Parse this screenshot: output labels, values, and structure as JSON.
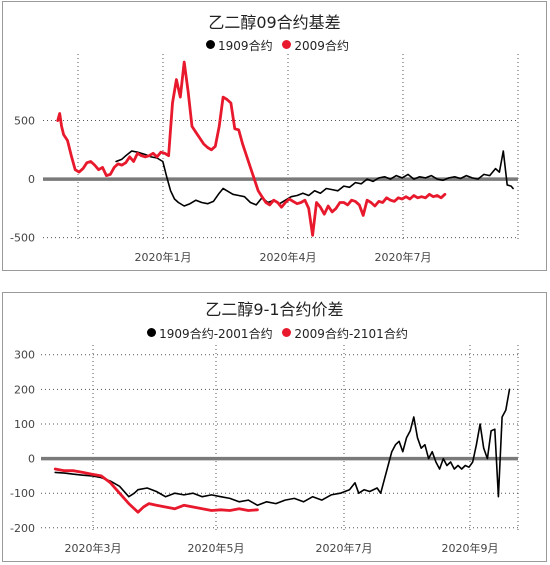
{
  "chart_data": [
    {
      "type": "line",
      "title": "乙二醇09合约基差",
      "ylim": [
        -520,
        1000
      ],
      "yticks": [
        500,
        0,
        -500
      ],
      "xticks": [
        "2020年1月",
        "2020年4月",
        "2020年7月"
      ],
      "grid": "dotted vertical and horizontal",
      "legend": "top-center",
      "series": [
        {
          "name": "1909合约",
          "color": "#000000",
          "points": [
            [
              35,
              150
            ],
            [
              38,
              170
            ],
            [
              40,
              200
            ],
            [
              43,
              240
            ],
            [
              46,
              230
            ],
            [
              50,
              210
            ],
            [
              53,
              190
            ],
            [
              56,
              180
            ],
            [
              59,
              150
            ],
            [
              61,
              20
            ],
            [
              63,
              -100
            ],
            [
              65,
              -170
            ],
            [
              67,
              -200
            ],
            [
              70,
              -230
            ],
            [
              73,
              -210
            ],
            [
              76,
              -180
            ],
            [
              79,
              -200
            ],
            [
              82,
              -210
            ],
            [
              85,
              -190
            ],
            [
              88,
              -120
            ],
            [
              90,
              -80
            ],
            [
              92,
              -100
            ],
            [
              95,
              -130
            ],
            [
              98,
              -140
            ],
            [
              101,
              -150
            ],
            [
              104,
              -200
            ],
            [
              107,
              -220
            ],
            [
              110,
              -160
            ],
            [
              113,
              -200
            ],
            [
              116,
              -180
            ],
            [
              119,
              -210
            ],
            [
              122,
              -180
            ],
            [
              125,
              -150
            ],
            [
              128,
              -140
            ],
            [
              131,
              -120
            ],
            [
              134,
              -140
            ],
            [
              137,
              -100
            ],
            [
              140,
              -120
            ],
            [
              143,
              -80
            ],
            [
              146,
              -90
            ],
            [
              149,
              -100
            ],
            [
              152,
              -60
            ],
            [
              155,
              -70
            ],
            [
              158,
              -30
            ],
            [
              161,
              -40
            ],
            [
              164,
              0
            ],
            [
              167,
              -20
            ],
            [
              170,
              10
            ],
            [
              173,
              20
            ],
            [
              176,
              0
            ],
            [
              179,
              30
            ],
            [
              182,
              10
            ],
            [
              185,
              40
            ],
            [
              188,
              0
            ],
            [
              191,
              20
            ],
            [
              194,
              10
            ],
            [
              197,
              30
            ],
            [
              200,
              0
            ],
            [
              203,
              -10
            ],
            [
              206,
              10
            ],
            [
              209,
              20
            ],
            [
              212,
              5
            ],
            [
              215,
              30
            ],
            [
              218,
              10
            ],
            [
              221,
              0
            ],
            [
              224,
              40
            ],
            [
              227,
              30
            ],
            [
              230,
              90
            ],
            [
              232,
              60
            ],
            [
              234,
              240
            ],
            [
              236,
              -50
            ],
            [
              238,
              -60
            ],
            [
              239,
              -80
            ]
          ]
        },
        {
          "name": "2009合约",
          "color": "#e8192c",
          "points": [
            [
              5,
              500
            ],
            [
              6,
              560
            ],
            [
              7,
              450
            ],
            [
              8,
              380
            ],
            [
              10,
              330
            ],
            [
              12,
              200
            ],
            [
              14,
              80
            ],
            [
              16,
              60
            ],
            [
              18,
              90
            ],
            [
              20,
              140
            ],
            [
              22,
              150
            ],
            [
              24,
              120
            ],
            [
              26,
              80
            ],
            [
              28,
              100
            ],
            [
              30,
              30
            ],
            [
              32,
              40
            ],
            [
              34,
              100
            ],
            [
              36,
              130
            ],
            [
              38,
              120
            ],
            [
              40,
              140
            ],
            [
              42,
              190
            ],
            [
              44,
              150
            ],
            [
              46,
              220
            ],
            [
              48,
              200
            ],
            [
              50,
              190
            ],
            [
              52,
              200
            ],
            [
              54,
              220
            ],
            [
              56,
              190
            ],
            [
              58,
              230
            ],
            [
              60,
              220
            ],
            [
              62,
              200
            ],
            [
              64,
              650
            ],
            [
              66,
              850
            ],
            [
              68,
              700
            ],
            [
              70,
              1000
            ],
            [
              72,
              750
            ],
            [
              74,
              450
            ],
            [
              76,
              400
            ],
            [
              78,
              350
            ],
            [
              80,
              300
            ],
            [
              82,
              270
            ],
            [
              84,
              250
            ],
            [
              86,
              280
            ],
            [
              88,
              450
            ],
            [
              90,
              700
            ],
            [
              92,
              680
            ],
            [
              94,
              650
            ],
            [
              96,
              430
            ],
            [
              98,
              420
            ],
            [
              100,
              300
            ],
            [
              102,
              200
            ],
            [
              104,
              100
            ],
            [
              106,
              0
            ],
            [
              108,
              -100
            ],
            [
              110,
              -150
            ],
            [
              112,
              -200
            ],
            [
              114,
              -220
            ],
            [
              116,
              -180
            ],
            [
              118,
              -200
            ],
            [
              120,
              -240
            ],
            [
              122,
              -200
            ],
            [
              124,
              -170
            ],
            [
              126,
              -190
            ],
            [
              128,
              -210
            ],
            [
              130,
              -200
            ],
            [
              132,
              -180
            ],
            [
              134,
              -250
            ],
            [
              136,
              -480
            ],
            [
              138,
              -200
            ],
            [
              140,
              -240
            ],
            [
              142,
              -300
            ],
            [
              144,
              -230
            ],
            [
              146,
              -280
            ],
            [
              148,
              -250
            ],
            [
              150,
              -200
            ],
            [
              152,
              -200
            ],
            [
              154,
              -220
            ],
            [
              156,
              -180
            ],
            [
              158,
              -190
            ],
            [
              160,
              -220
            ],
            [
              162,
              -310
            ],
            [
              164,
              -180
            ],
            [
              166,
              -200
            ],
            [
              168,
              -230
            ],
            [
              170,
              -190
            ],
            [
              172,
              -200
            ],
            [
              174,
              -160
            ],
            [
              176,
              -180
            ],
            [
              178,
              -190
            ],
            [
              180,
              -160
            ],
            [
              182,
              -170
            ],
            [
              184,
              -150
            ],
            [
              186,
              -170
            ],
            [
              188,
              -140
            ],
            [
              190,
              -160
            ],
            [
              192,
              -150
            ],
            [
              194,
              -160
            ],
            [
              196,
              -130
            ],
            [
              198,
              -150
            ],
            [
              200,
              -140
            ],
            [
              202,
              -160
            ],
            [
              204,
              -130
            ]
          ]
        }
      ]
    },
    {
      "type": "line",
      "title": "乙二醇9-1合约价差",
      "ylim": [
        -215,
        305
      ],
      "yticks": [
        300,
        200,
        100,
        0,
        -100,
        -200
      ],
      "xticks": [
        "2020年3月",
        "2020年5月",
        "2020年7月",
        "2020年9月"
      ],
      "grid": "dotted vertical and horizontal",
      "legend": "top-center",
      "series": [
        {
          "name": "1909合约-2001合约",
          "color": "#000000",
          "points": [
            [
              5,
              -40
            ],
            [
              10,
              -42
            ],
            [
              15,
              -45
            ],
            [
              20,
              -48
            ],
            [
              25,
              -50
            ],
            [
              30,
              -55
            ],
            [
              35,
              -65
            ],
            [
              40,
              -80
            ],
            [
              45,
              -110
            ],
            [
              48,
              -100
            ],
            [
              50,
              -90
            ],
            [
              55,
              -85
            ],
            [
              60,
              -95
            ],
            [
              65,
              -110
            ],
            [
              70,
              -100
            ],
            [
              75,
              -105
            ],
            [
              80,
              -100
            ],
            [
              85,
              -110
            ],
            [
              90,
              -105
            ],
            [
              95,
              -110
            ],
            [
              100,
              -115
            ],
            [
              105,
              -125
            ],
            [
              110,
              -120
            ],
            [
              115,
              -135
            ],
            [
              120,
              -125
            ],
            [
              125,
              -130
            ],
            [
              130,
              -120
            ],
            [
              135,
              -115
            ],
            [
              140,
              -125
            ],
            [
              145,
              -110
            ],
            [
              150,
              -120
            ],
            [
              155,
              -105
            ],
            [
              160,
              -100
            ],
            [
              165,
              -90
            ],
            [
              168,
              -70
            ],
            [
              170,
              -100
            ],
            [
              173,
              -90
            ],
            [
              176,
              -95
            ],
            [
              180,
              -85
            ],
            [
              182,
              -100
            ],
            [
              184,
              -60
            ],
            [
              186,
              -20
            ],
            [
              188,
              20
            ],
            [
              190,
              40
            ],
            [
              192,
              50
            ],
            [
              194,
              20
            ],
            [
              196,
              60
            ],
            [
              198,
              80
            ],
            [
              200,
              120
            ],
            [
              202,
              60
            ],
            [
              204,
              30
            ],
            [
              206,
              40
            ],
            [
              208,
              0
            ],
            [
              210,
              20
            ],
            [
              212,
              -10
            ],
            [
              214,
              -30
            ],
            [
              216,
              0
            ],
            [
              218,
              -20
            ],
            [
              220,
              -10
            ],
            [
              222,
              -30
            ],
            [
              224,
              -20
            ],
            [
              226,
              -30
            ],
            [
              228,
              -20
            ],
            [
              230,
              -25
            ],
            [
              232,
              -10
            ],
            [
              234,
              40
            ],
            [
              236,
              100
            ],
            [
              238,
              30
            ],
            [
              240,
              0
            ],
            [
              242,
              80
            ],
            [
              244,
              85
            ],
            [
              246,
              -110
            ],
            [
              248,
              120
            ],
            [
              250,
              140
            ],
            [
              252,
              200
            ]
          ]
        },
        {
          "name": "2009合约-2101合约",
          "color": "#e8192c",
          "points": [
            [
              5,
              -30
            ],
            [
              10,
              -35
            ],
            [
              15,
              -35
            ],
            [
              20,
              -40
            ],
            [
              25,
              -45
            ],
            [
              30,
              -50
            ],
            [
              35,
              -70
            ],
            [
              40,
              -100
            ],
            [
              45,
              -130
            ],
            [
              50,
              -155
            ],
            [
              53,
              -140
            ],
            [
              56,
              -130
            ],
            [
              60,
              -135
            ],
            [
              65,
              -140
            ],
            [
              70,
              -145
            ],
            [
              75,
              -135
            ],
            [
              80,
              -140
            ],
            [
              85,
              -145
            ],
            [
              90,
              -150
            ],
            [
              95,
              -148
            ],
            [
              100,
              -150
            ],
            [
              105,
              -145
            ],
            [
              110,
              -150
            ],
            [
              115,
              -148
            ]
          ]
        }
      ]
    }
  ]
}
